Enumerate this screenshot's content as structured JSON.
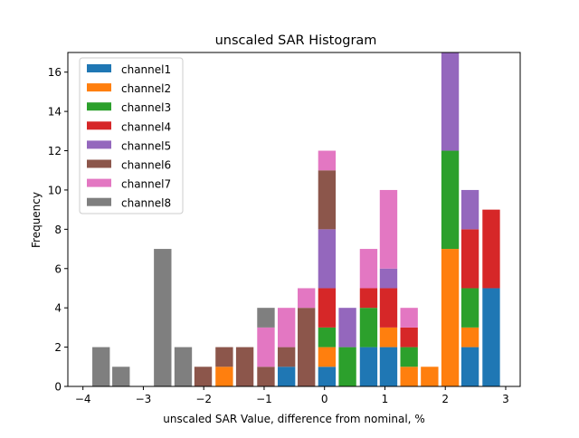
{
  "chart_data": {
    "type": "bar",
    "stacked": true,
    "title": "unscaled SAR Histogram",
    "xlabel": "unscaled SAR Value, difference from nominal, %",
    "ylabel": "Frequency",
    "xlim": [
      -4.25,
      3.24
    ],
    "ylim": [
      0,
      17
    ],
    "bin_width": 0.29,
    "xticks": [
      -4,
      -3,
      -2,
      -1,
      0,
      1,
      2,
      3
    ],
    "xtick_labels": [
      "−4",
      "−3",
      "−2",
      "−1",
      "0",
      "1",
      "2",
      "3"
    ],
    "yticks": [
      0,
      2,
      4,
      6,
      8,
      10,
      12,
      14,
      16
    ],
    "ytick_labels": [
      "0",
      "2",
      "4",
      "6",
      "8",
      "10",
      "12",
      "14",
      "16"
    ],
    "grid": false,
    "legend_position": "top-left",
    "x": [
      -3.7,
      -3.37,
      -3.03,
      -2.68,
      -2.34,
      -2.01,
      -1.66,
      -1.32,
      -0.97,
      -0.63,
      -0.3,
      0.04,
      0.38,
      0.73,
      1.06,
      1.4,
      1.74,
      2.08,
      2.41,
      2.76
    ],
    "series": [
      {
        "name": "channel1",
        "color": "#1f77b4",
        "values": [
          0,
          0,
          0,
          0,
          0,
          0,
          0,
          0,
          0,
          1,
          0,
          1,
          0,
          2,
          2,
          0,
          0,
          0,
          2,
          5
        ]
      },
      {
        "name": "channel2",
        "color": "#ff7f0e",
        "values": [
          0,
          0,
          0,
          0,
          0,
          0,
          1,
          0,
          0,
          0,
          0,
          1,
          0,
          0,
          1,
          1,
          1,
          7,
          1,
          0
        ]
      },
      {
        "name": "channel3",
        "color": "#2ca02c",
        "values": [
          0,
          0,
          0,
          0,
          0,
          0,
          0,
          0,
          0,
          0,
          0,
          1,
          2,
          2,
          0,
          1,
          0,
          5,
          2,
          0
        ]
      },
      {
        "name": "channel4",
        "color": "#d62728",
        "values": [
          0,
          0,
          0,
          0,
          0,
          0,
          0,
          0,
          0,
          0,
          0,
          2,
          0,
          1,
          2,
          1,
          0,
          0,
          3,
          4
        ]
      },
      {
        "name": "channel5",
        "color": "#9467bd",
        "values": [
          0,
          0,
          0,
          0,
          0,
          0,
          0,
          0,
          0,
          0,
          0,
          3,
          2,
          0,
          1,
          0,
          0,
          5,
          2,
          0
        ]
      },
      {
        "name": "channel6",
        "color": "#8c564b",
        "values": [
          0,
          0,
          0,
          0,
          0,
          1,
          1,
          2,
          1,
          1,
          4,
          3,
          0,
          0,
          0,
          0,
          0,
          0,
          0,
          0
        ]
      },
      {
        "name": "channel7",
        "color": "#e377c2",
        "values": [
          0,
          0,
          0,
          0,
          0,
          0,
          0,
          0,
          2,
          2,
          1,
          1,
          0,
          2,
          4,
          1,
          0,
          0,
          0,
          0
        ]
      },
      {
        "name": "channel8",
        "color": "#7f7f7f",
        "values": [
          2,
          1,
          0,
          7,
          2,
          0,
          0,
          0,
          1,
          0,
          0,
          0,
          0,
          0,
          0,
          0,
          0,
          0,
          0,
          0
        ]
      }
    ]
  }
}
